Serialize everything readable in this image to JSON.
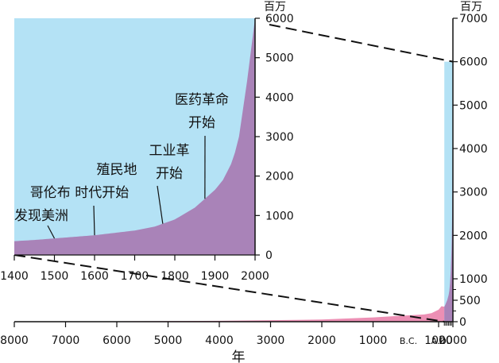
{
  "chart_data": [
    {
      "type": "area",
      "x": [
        1400,
        1450,
        1500,
        1550,
        1600,
        1650,
        1700,
        1750,
        1800,
        1850,
        1900,
        1920,
        1940,
        1950,
        1960,
        1970,
        1980,
        1990,
        2000
      ],
      "values": [
        350,
        380,
        420,
        460,
        500,
        560,
        620,
        720,
        900,
        1200,
        1650,
        1900,
        2300,
        2600,
        3000,
        3700,
        4400,
        5200,
        6000
      ],
      "xlim": [
        1400,
        2000
      ],
      "ylim": [
        0,
        6000
      ],
      "x_ticks": [
        "1400",
        "1500",
        "1600",
        "1700",
        "1800",
        "1900",
        "2000"
      ],
      "y_ticks": [
        "0",
        "1000",
        "2000",
        "3000",
        "4000",
        "5000",
        "6000"
      ],
      "unit_label": "百万",
      "colors": {
        "population": "#a983b8",
        "background": "#b4e2f5"
      },
      "annotations": [
        {
          "lines": [
            "发现美洲"
          ],
          "x": 1500
        },
        {
          "lines": [
            "哥伦布 时代开始"
          ],
          "x": 1600
        },
        {
          "lines": [
            "殖民地"
          ],
          "x": 1600
        },
        {
          "lines": [
            "工业革",
            "开始"
          ],
          "x": 1770
        },
        {
          "lines": [
            "医药革命",
            "开始"
          ],
          "x": 1875
        }
      ]
    },
    {
      "type": "area",
      "x": [
        -8000,
        -6000,
        -4000,
        -2000,
        -1000,
        0,
        500,
        1000,
        1200,
        1400,
        1600,
        1750,
        1850,
        1900,
        1950,
        2000
      ],
      "values": [
        5,
        10,
        20,
        50,
        100,
        170,
        200,
        280,
        360,
        350,
        500,
        720,
        1200,
        1650,
        2600,
        6000
      ],
      "ylim": [
        0,
        7000
      ],
      "x_ticks": [
        "8000",
        "7000",
        "6000",
        "5000",
        "4000",
        "3000",
        "2000",
        "1000",
        "B.C.",
        "A.D.",
        "1000",
        "2000"
      ],
      "y_ticks": [
        "0",
        "500",
        "1000",
        "2000",
        "3000",
        "4000",
        "5000",
        "6000",
        "7000"
      ],
      "unit_label": "百万",
      "xlabel": "年",
      "colors": {
        "population": "#ec8fb4",
        "inset_population": "#a983b8",
        "inset_background": "#b4e2f5"
      }
    }
  ]
}
